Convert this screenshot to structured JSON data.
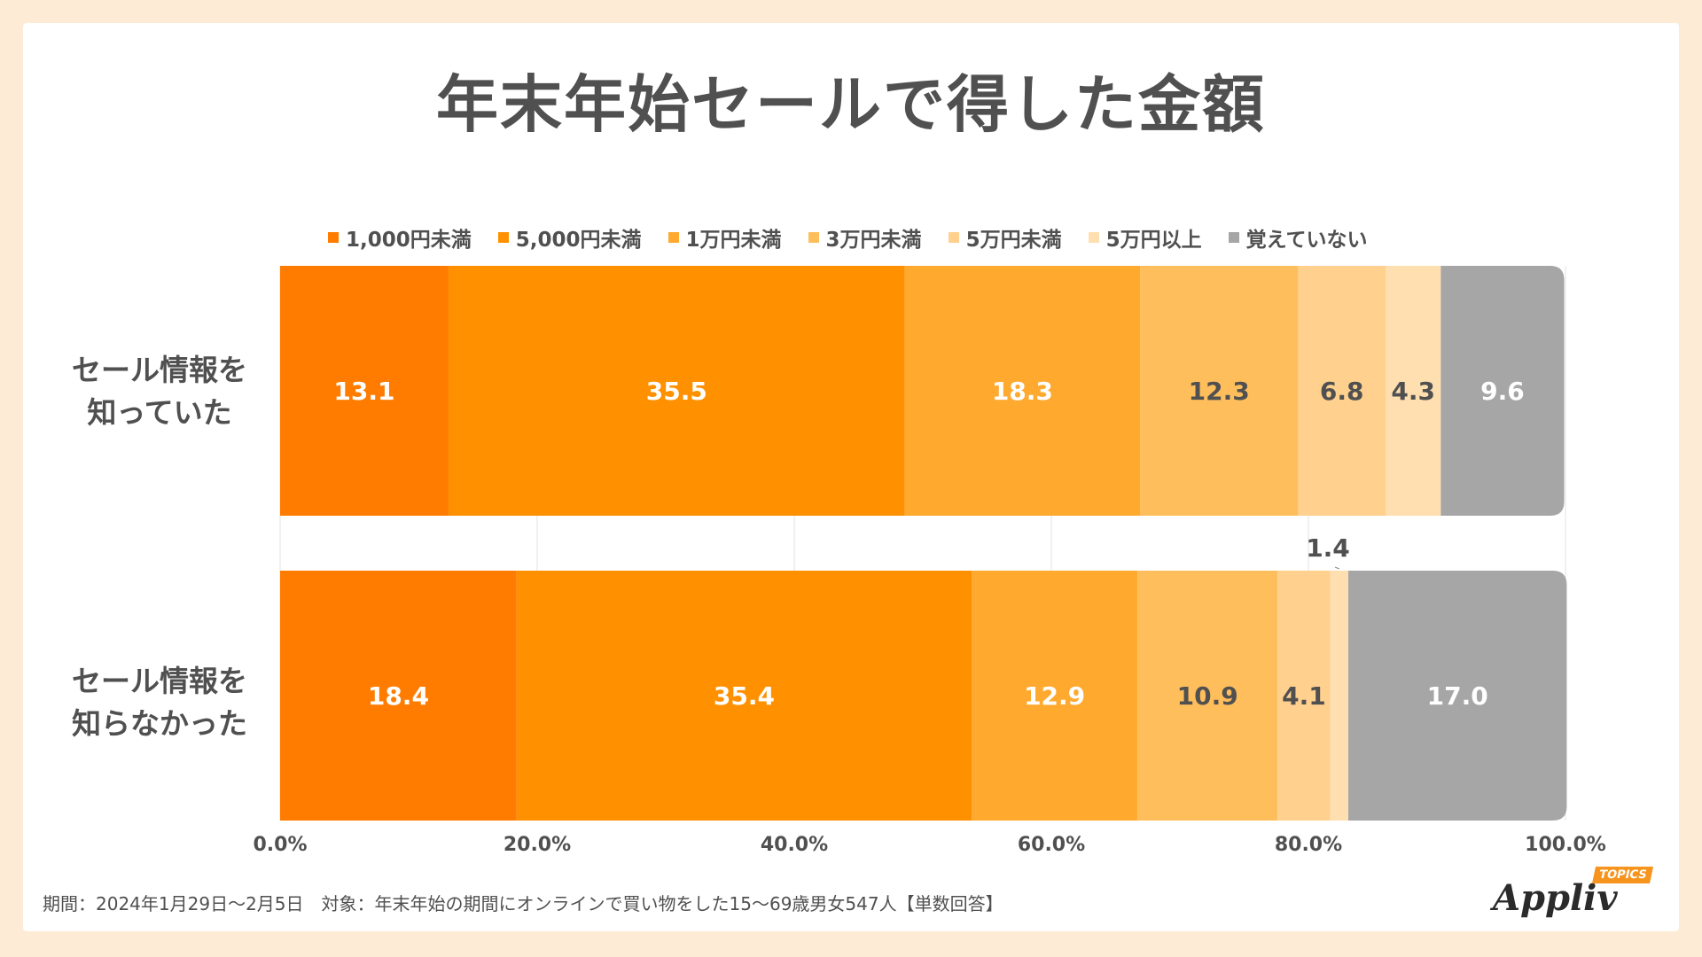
{
  "title": "年末年始セールで得した金額",
  "footnote": "期間：2024年1月29日〜2月5日　対象：年末年始の期間にオンラインで買い物をした15〜69歳男女547人【単数回答】",
  "logo": {
    "text": "Appliv",
    "badge": "TOPICS"
  },
  "colors": {
    "background": "#fdebd6",
    "text": "#505050",
    "series": [
      "#ff7c00",
      "#ff9000",
      "#ffa92e",
      "#ffbe5c",
      "#ffd08e",
      "#ffdfb0",
      "#a6a6a6"
    ],
    "label_dark": "#505050",
    "label_light": "#ffffff"
  },
  "chart_data": {
    "type": "bar",
    "orientation": "horizontal-stacked-100",
    "categories": [
      "セール情報を知っていた",
      "セール情報を知らなかった"
    ],
    "category_lines": [
      [
        "セール情報を",
        "知っていた"
      ],
      [
        "セール情報を",
        "知らなかった"
      ]
    ],
    "series": [
      {
        "name": "1,000円未満",
        "values": [
          13.1,
          18.4
        ],
        "labels": [
          "13.1",
          "18.4"
        ]
      },
      {
        "name": "5,000円未満",
        "values": [
          35.5,
          35.4
        ],
        "labels": [
          "35.5",
          "35.4"
        ]
      },
      {
        "name": "1万円未満",
        "values": [
          18.3,
          12.9
        ],
        "labels": [
          "18.3",
          "12.9"
        ]
      },
      {
        "name": "3万円未満",
        "values": [
          12.3,
          10.9
        ],
        "labels": [
          "12.3",
          "10.9"
        ]
      },
      {
        "name": "5万円未満",
        "values": [
          6.8,
          4.1
        ],
        "labels": [
          "6.8",
          "4.1"
        ]
      },
      {
        "name": "5万円以上",
        "values": [
          4.3,
          1.4
        ],
        "labels": [
          "4.3",
          "1.4"
        ]
      },
      {
        "name": "覚えていない",
        "values": [
          9.6,
          17.0
        ],
        "labels": [
          "9.6",
          "17.0"
        ]
      }
    ],
    "xlim": [
      0,
      100
    ],
    "x_ticks": [
      "0.0%",
      "20.0%",
      "40.0%",
      "60.0%",
      "80.0%",
      "100.0%"
    ],
    "grid": true,
    "legend": "top"
  }
}
